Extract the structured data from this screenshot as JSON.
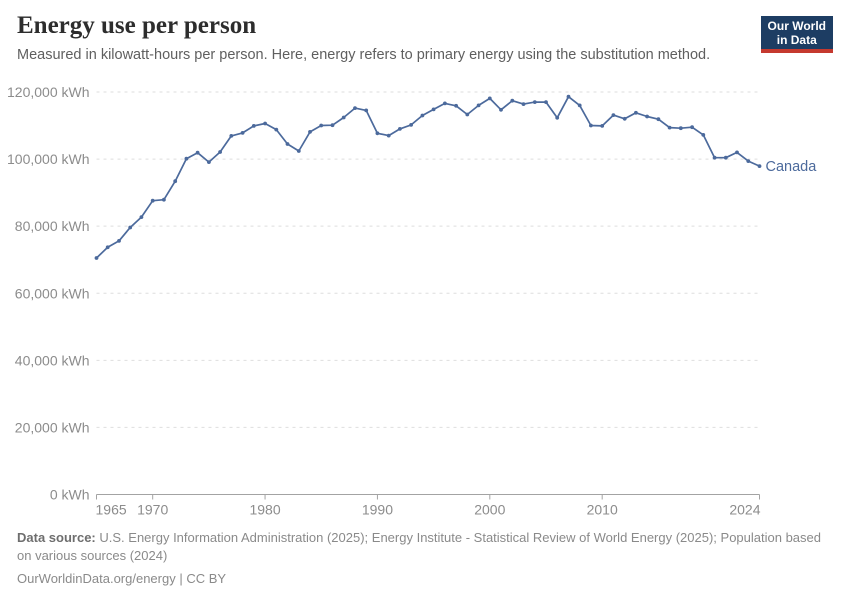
{
  "header": {
    "title": "Energy use per person",
    "subtitle": "Measured in kilowatt-hours per person. Here, energy refers to primary energy using the substitution method."
  },
  "logo": {
    "line1": "Our World",
    "line2": "in Data",
    "bg_color": "#1D3D63",
    "bar_color": "#C5392F"
  },
  "chart_data": {
    "type": "line",
    "title": "Energy use per person",
    "unit": "kWh",
    "grid": "horizontal-dashed",
    "legend_position": "end-of-line-label",
    "xlim": [
      1965,
      2024
    ],
    "ylim": [
      0,
      120000
    ],
    "line_color": "#4C6A9C",
    "axis_text_color": "#8c8c8c",
    "x": [
      1965,
      1966,
      1967,
      1968,
      1969,
      1970,
      1971,
      1972,
      1973,
      1974,
      1975,
      1976,
      1977,
      1978,
      1979,
      1980,
      1981,
      1982,
      1983,
      1984,
      1985,
      1986,
      1987,
      1988,
      1989,
      1990,
      1991,
      1992,
      1993,
      1994,
      1995,
      1996,
      1997,
      1998,
      1999,
      2000,
      2001,
      2002,
      2003,
      2004,
      2005,
      2006,
      2007,
      2008,
      2009,
      2010,
      2011,
      2012,
      2013,
      2014,
      2015,
      2016,
      2017,
      2018,
      2019,
      2020,
      2021,
      2022,
      2023,
      2024
    ],
    "series": [
      {
        "name": "Canada",
        "values": [
          70500,
          73700,
          75600,
          79600,
          82700,
          87600,
          87900,
          93400,
          100100,
          101900,
          99100,
          102100,
          106900,
          107800,
          109900,
          110600,
          108800,
          104500,
          102400,
          108100,
          110000,
          110100,
          112400,
          115200,
          114500,
          107700,
          107000,
          109000,
          110200,
          113000,
          114800,
          116600,
          115900,
          113300,
          116000,
          118100,
          114700,
          117400,
          116400,
          117000,
          117000,
          112300,
          118600,
          116000,
          110000,
          109900,
          113100,
          112000,
          113800,
          112700,
          111900,
          109400,
          109200,
          109500,
          107200,
          100400,
          100400,
          102000,
          99400,
          97900
        ]
      }
    ],
    "xticks": [
      {
        "value": 1965,
        "label": "1965"
      },
      {
        "value": 1970,
        "label": "1970"
      },
      {
        "value": 1980,
        "label": "1980"
      },
      {
        "value": 1990,
        "label": "1990"
      },
      {
        "value": 2000,
        "label": "2000"
      },
      {
        "value": 2010,
        "label": "2010"
      },
      {
        "value": 2024,
        "label": "2024"
      }
    ],
    "yticks": [
      {
        "value": 0,
        "label": "0 kWh"
      },
      {
        "value": 20000,
        "label": "20,000 kWh"
      },
      {
        "value": 40000,
        "label": "40,000 kWh"
      },
      {
        "value": 60000,
        "label": "60,000 kWh"
      },
      {
        "value": 80000,
        "label": "80,000 kWh"
      },
      {
        "value": 100000,
        "label": "100,000 kWh"
      },
      {
        "value": 120000,
        "label": "120,000 kWh"
      }
    ],
    "entity_label": "Canada"
  },
  "footer": {
    "source_label": "Data source:",
    "source_text": "U.S. Energy Information Administration (2025); Energy Institute - Statistical Review of World Energy (2025); Population based on various sources (2024)",
    "license_line": "OurWorldinData.org/energy | CC BY"
  }
}
